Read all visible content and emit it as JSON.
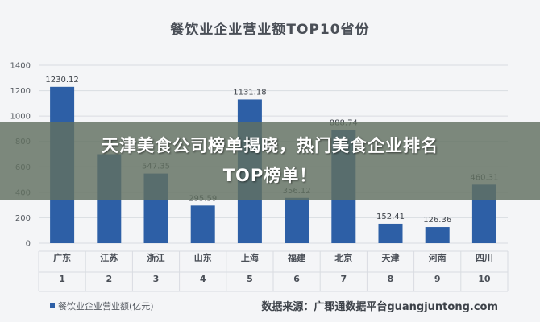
{
  "colors": {
    "bar": "#2d5fa6",
    "grid": "#d9dce1",
    "text": "#4a4f57",
    "overlay": "#627060"
  },
  "overlay": {
    "line1": "天津美食公司榜单揭晓，热门美食企业排名",
    "line2": "TOP榜单！"
  },
  "legend": {
    "label": "餐饮业企业营业额(亿元)"
  },
  "source": "数据来源：广郡通数据平台guangjuntong.com",
  "chart_data": {
    "type": "bar",
    "title": "餐饮业企业营业额TOP10省份",
    "categories": [
      "广东",
      "江苏",
      "浙江",
      "山东",
      "上海",
      "福建",
      "北京",
      "天津",
      "河南",
      "四川"
    ],
    "ranks": [
      "1",
      "2",
      "3",
      "4",
      "5",
      "6",
      "7",
      "8",
      "9",
      "10"
    ],
    "series": [
      {
        "name": "餐饮业企业营业额(亿元)",
        "values": [
          1230.12,
          700,
          547.35,
          295.59,
          1131.18,
          356.12,
          888.74,
          152.41,
          126.36,
          460.31
        ],
        "labels": [
          "1230.12",
          "",
          "547.35",
          "295.59",
          "1131.18",
          "356.12",
          "888.74",
          "152.41",
          "126.36",
          "460.31"
        ]
      }
    ],
    "ylim": [
      0,
      1400
    ],
    "yticks": [
      "0",
      "200",
      "400",
      "600",
      "800",
      "1000",
      "1200",
      "1400"
    ],
    "grid": true,
    "legend_position": "bottom-left"
  }
}
